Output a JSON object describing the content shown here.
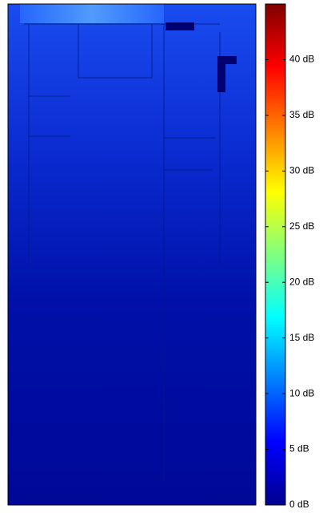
{
  "chart_data": {
    "type": "heatmap",
    "colormap": "jet",
    "clim": [
      0,
      45
    ],
    "cticks": [
      {
        "value": 0,
        "label": "0 dB"
      },
      {
        "value": 5,
        "label": "5 dB"
      },
      {
        "value": 10,
        "label": "10 dB"
      },
      {
        "value": 15,
        "label": "15 dB"
      },
      {
        "value": 20,
        "label": "20 dB"
      },
      {
        "value": 25,
        "label": "25 dB"
      },
      {
        "value": 30,
        "label": "30 dB"
      },
      {
        "value": 35,
        "label": "35 dB"
      },
      {
        "value": 40,
        "label": "40 dB"
      }
    ]
  }
}
